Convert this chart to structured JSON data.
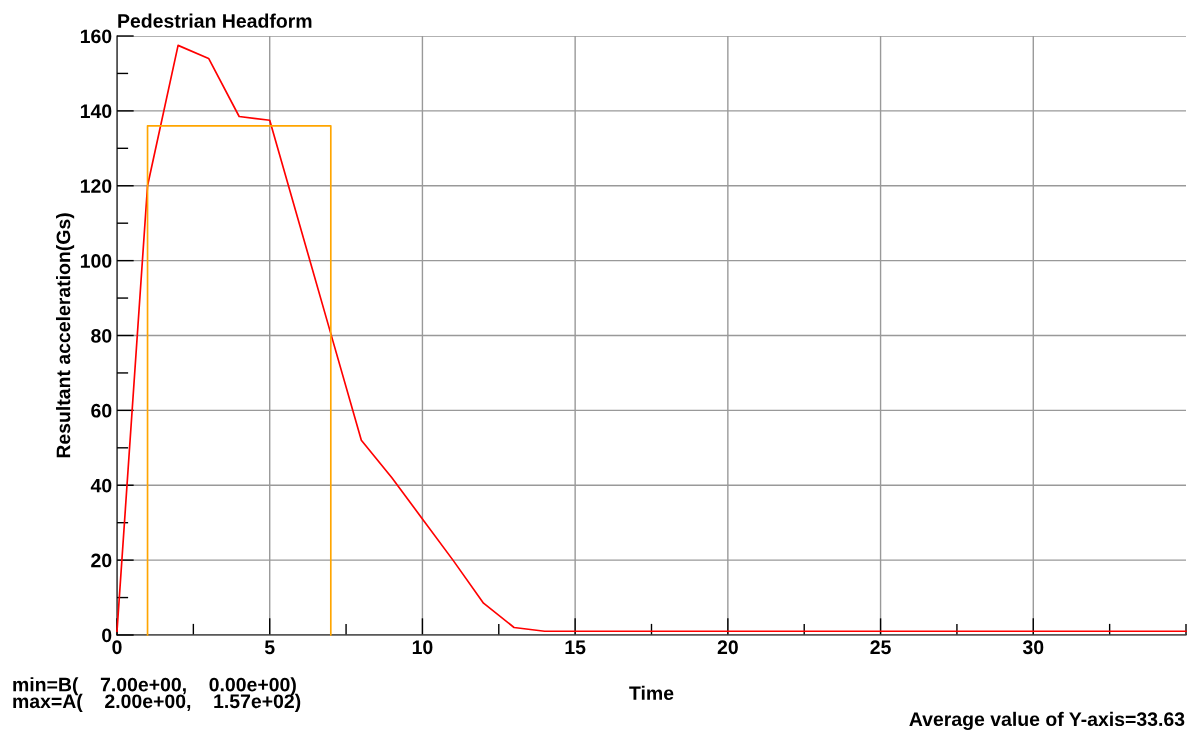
{
  "chart_data": {
    "type": "line",
    "title": "Pedestrian Headform",
    "xlabel": "Time",
    "ylabel": "Resultant acceleration(Gs)",
    "xlim": [
      0,
      35
    ],
    "ylim": [
      0,
      160
    ],
    "xticks": [
      0,
      5,
      10,
      15,
      20,
      25,
      30
    ],
    "yticks": [
      0,
      20,
      40,
      60,
      80,
      100,
      120,
      140,
      160
    ],
    "grid": true,
    "legend": false,
    "marker": "none",
    "line_style": "solid",
    "series": [
      {
        "color": "#ff0000",
        "x": [
          0,
          1,
          2,
          3,
          4,
          5,
          7,
          8,
          9,
          10,
          11,
          12,
          13,
          14,
          35
        ],
        "values": [
          1,
          120,
          157.5,
          154,
          138.5,
          137.5,
          80.5,
          52,
          42,
          31,
          20,
          8.5,
          2,
          1,
          1
        ]
      },
      {
        "color": "#ffa500",
        "x": [
          1,
          1,
          7,
          7
        ],
        "values": [
          0,
          136,
          136,
          0
        ]
      }
    ],
    "annotations": [
      "min=B(    7.00e+00,    0.00e+00)\nmax=A(    2.00e+00,    1.57e+02)",
      "Average value of Y-axis=33.63"
    ]
  }
}
